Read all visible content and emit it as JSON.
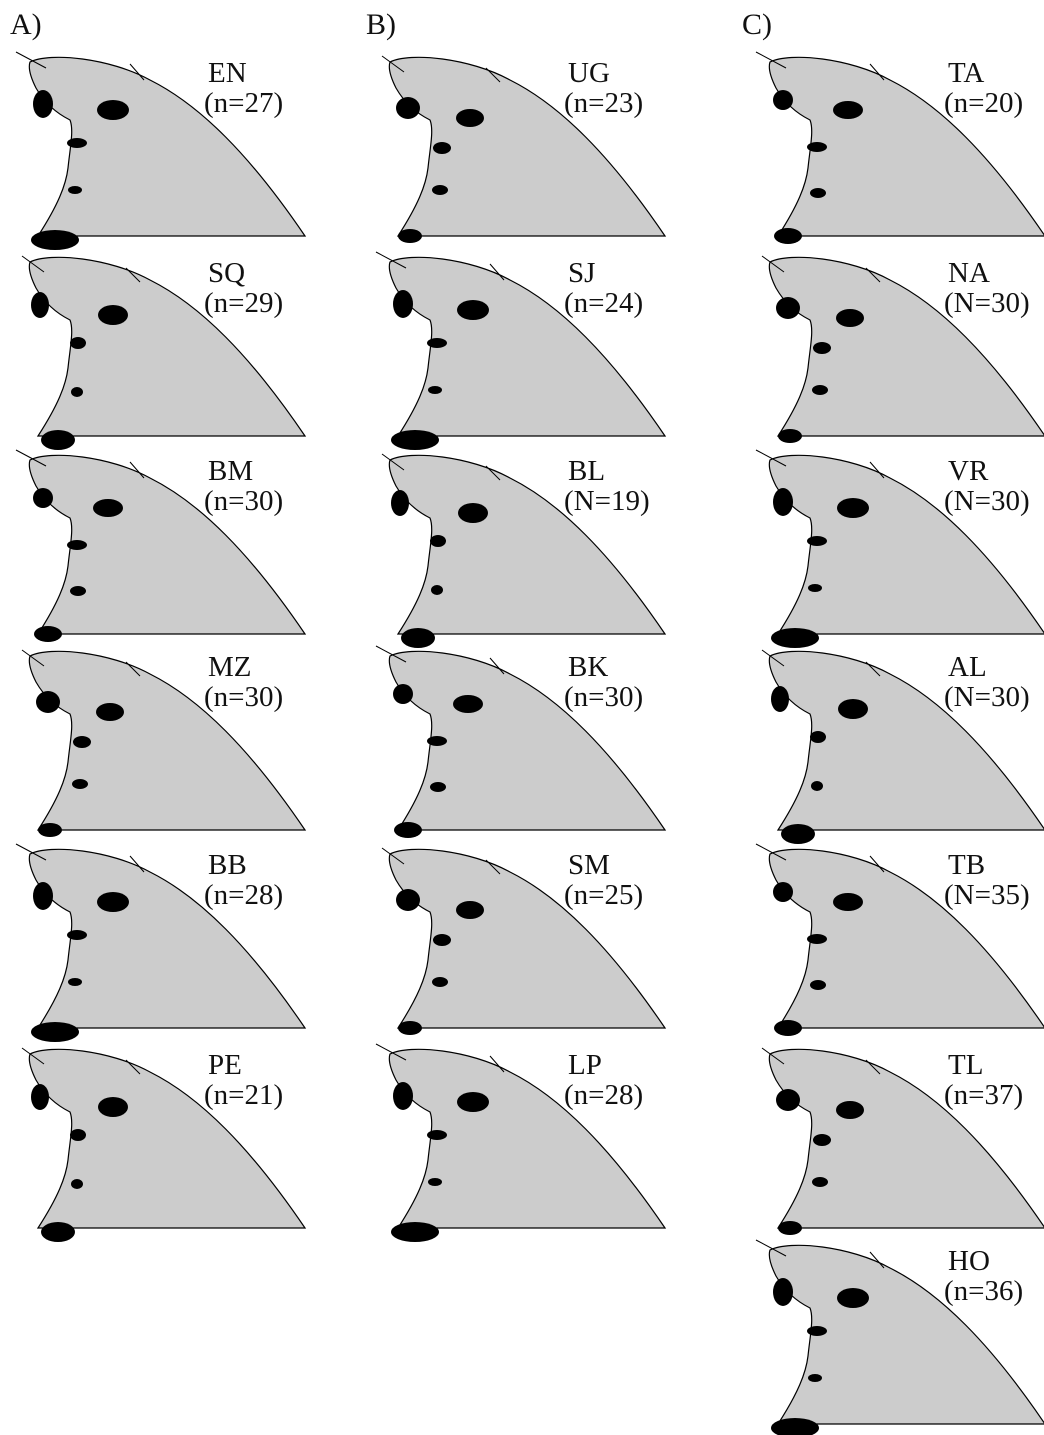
{
  "figure": {
    "columns": [
      {
        "label": "A)",
        "panels": [
          {
            "code": "EN",
            "n": "(n=27)"
          },
          {
            "code": "SQ",
            "n": "(n=29)"
          },
          {
            "code": "BM",
            "n": "(n=30)"
          },
          {
            "code": "MZ",
            "n": "(n=30)"
          },
          {
            "code": "BB",
            "n": "(n=28)"
          },
          {
            "code": "PE",
            "n": "(n=21)"
          }
        ]
      },
      {
        "label": "B)",
        "panels": [
          {
            "code": "UG",
            "n": "(n=23)"
          },
          {
            "code": "SJ",
            "n": "(n=24)"
          },
          {
            "code": "BL",
            "n": "(N=19)"
          },
          {
            "code": "BK",
            "n": "(n=30)"
          },
          {
            "code": "SM",
            "n": "(n=25)"
          },
          {
            "code": "LP",
            "n": "(n=28)"
          }
        ]
      },
      {
        "label": "C)",
        "panels": [
          {
            "code": "TA",
            "n": "(n=20)"
          },
          {
            "code": "NA",
            "n": "(N=30)"
          },
          {
            "code": "VR",
            "n": "(N=30)"
          },
          {
            "code": "AL",
            "n": "(N=30)"
          },
          {
            "code": "TB",
            "n": "(N=35)"
          },
          {
            "code": "TL",
            "n": "(n=37)"
          },
          {
            "code": "HO",
            "n": "(n=36)"
          }
        ]
      }
    ]
  }
}
